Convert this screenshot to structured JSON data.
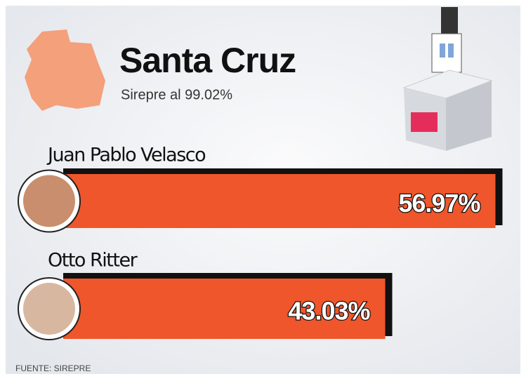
{
  "chart_data": {
    "type": "bar",
    "orientation": "horizontal",
    "title": "Santa Cruz",
    "subtitle": "Sirepre al 99.02%",
    "categories": [
      "Juan Pablo Velasco",
      "Otto Ritter"
    ],
    "values": [
      56.97,
      43.03
    ],
    "value_labels": [
      "56.97%",
      "43.03%"
    ],
    "color": "#f0562b",
    "source": "FUENTE: SIREPRE"
  }
}
